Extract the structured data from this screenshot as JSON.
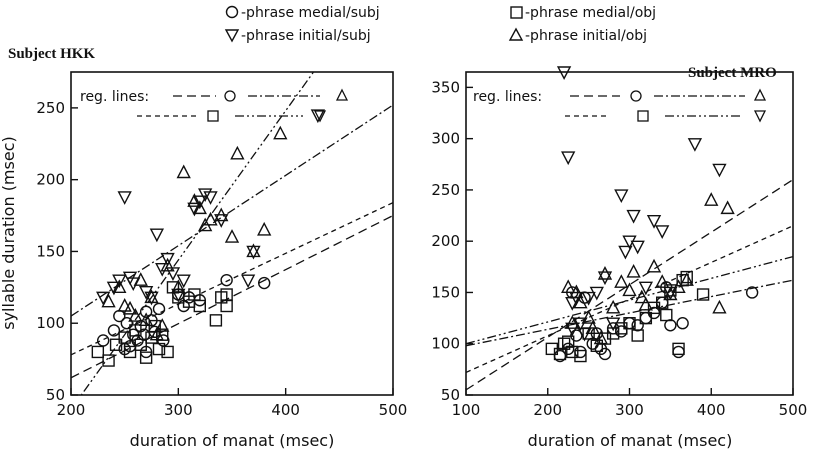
{
  "legend": [
    {
      "marker": "circle",
      "label": "-phrase medial/subj"
    },
    {
      "marker": "triangle-down",
      "label": "-phrase initial/subj"
    },
    {
      "marker": "square",
      "label": "-phrase medial/obj"
    },
    {
      "marker": "triangle-up",
      "label": "-phrase initial/obj"
    }
  ],
  "reg_label": "reg. lines:",
  "reg_styles": [
    {
      "marker": "circle",
      "dash": "long-dash"
    },
    {
      "marker": "triangle-up",
      "dash": "dash-dot"
    },
    {
      "marker": "square",
      "dash": "short-dash"
    },
    {
      "marker": "triangle-down",
      "dash": "dash-dot-dot"
    }
  ],
  "chart_data": [
    {
      "type": "scatter",
      "subtitle": "Subject HKK",
      "xlabel": "duration of manat (msec)",
      "ylabel": "syllable duration (msec)",
      "xlim": [
        200,
        500
      ],
      "ylim": [
        50,
        275
      ],
      "xticks": [
        200,
        300,
        400,
        500
      ],
      "yticks": [
        50,
        100,
        150,
        200,
        250
      ],
      "series": [
        {
          "name": "phrase medial/subj",
          "marker": "circle",
          "points": [
            [
              230,
              88
            ],
            [
              240,
              95
            ],
            [
              245,
              105
            ],
            [
              250,
              82
            ],
            [
              252,
              100
            ],
            [
              258,
              92
            ],
            [
              262,
              88
            ],
            [
              265,
              98
            ],
            [
              270,
              80
            ],
            [
              270,
              108
            ],
            [
              275,
              102
            ],
            [
              278,
              94
            ],
            [
              282,
              110
            ],
            [
              286,
              88
            ],
            [
              300,
              120
            ],
            [
              305,
              112
            ],
            [
              310,
              118
            ],
            [
              320,
              116
            ],
            [
              345,
              130
            ],
            [
              380,
              128
            ],
            [
              255,
              84
            ],
            [
              268,
              92
            ]
          ]
        },
        {
          "name": "phrase initial/subj",
          "marker": "triangle-down",
          "points": [
            [
              230,
              118
            ],
            [
              240,
              125
            ],
            [
              245,
              130
            ],
            [
              250,
              188
            ],
            [
              258,
              128
            ],
            [
              270,
              122
            ],
            [
              275,
              118
            ],
            [
              280,
              162
            ],
            [
              285,
              138
            ],
            [
              290,
              145
            ],
            [
              295,
              135
            ],
            [
              300,
              120
            ],
            [
              305,
              130
            ],
            [
              315,
              180
            ],
            [
              320,
              185
            ],
            [
              325,
              190
            ],
            [
              330,
              188
            ],
            [
              340,
              172
            ],
            [
              365,
              130
            ],
            [
              370,
              150
            ],
            [
              430,
              245
            ],
            [
              255,
              132
            ]
          ]
        },
        {
          "name": "phrase medial/obj",
          "marker": "square",
          "points": [
            [
              225,
              80
            ],
            [
              235,
              74
            ],
            [
              242,
              85
            ],
            [
              250,
              90
            ],
            [
              255,
              80
            ],
            [
              260,
              95
            ],
            [
              265,
              85
            ],
            [
              270,
              76
            ],
            [
              275,
              90
            ],
            [
              278,
              98
            ],
            [
              282,
              82
            ],
            [
              285,
              92
            ],
            [
              290,
              80
            ],
            [
              295,
              125
            ],
            [
              300,
              118
            ],
            [
              310,
              115
            ],
            [
              315,
              120
            ],
            [
              320,
              112
            ],
            [
              335,
              102
            ],
            [
              340,
              118
            ],
            [
              345,
              112
            ],
            [
              345,
              120
            ]
          ]
        },
        {
          "name": "phrase initial/obj",
          "marker": "triangle-up",
          "points": [
            [
              235,
              115
            ],
            [
              245,
              125
            ],
            [
              250,
              112
            ],
            [
              255,
              110
            ],
            [
              260,
              105
            ],
            [
              265,
              130
            ],
            [
              270,
              102
            ],
            [
              275,
              118
            ],
            [
              280,
              92
            ],
            [
              285,
              98
            ],
            [
              290,
              140
            ],
            [
              300,
              125
            ],
            [
              305,
              205
            ],
            [
              315,
              185
            ],
            [
              320,
              180
            ],
            [
              325,
              168
            ],
            [
              330,
              172
            ],
            [
              340,
              175
            ],
            [
              350,
              160
            ],
            [
              355,
              218
            ],
            [
              370,
              150
            ],
            [
              380,
              165
            ],
            [
              395,
              232
            ]
          ]
        }
      ],
      "reg_lines": [
        {
          "marker": "circle",
          "from": [
            200,
            62
          ],
          "to": [
            500,
            175
          ]
        },
        {
          "marker": "triangle-up",
          "from": [
            200,
            105
          ],
          "to": [
            500,
            252
          ]
        },
        {
          "marker": "square",
          "from": [
            200,
            78
          ],
          "to": [
            500,
            184
          ]
        },
        {
          "marker": "triangle-down",
          "from": [
            200,
            40
          ],
          "to": [
            450,
            300
          ]
        }
      ]
    },
    {
      "type": "scatter",
      "subtitle": "Subject MRO",
      "xlabel": "duration of manat (msec)",
      "ylabel": "",
      "xlim": [
        100,
        500
      ],
      "ylim": [
        50,
        365
      ],
      "xticks": [
        100,
        200,
        300,
        400,
        500
      ],
      "yticks": [
        50,
        100,
        150,
        200,
        250,
        300,
        350
      ],
      "series": [
        {
          "name": "phrase medial/subj",
          "marker": "circle",
          "points": [
            [
              215,
              88
            ],
            [
              225,
              95
            ],
            [
              230,
              150
            ],
            [
              240,
              92
            ],
            [
              245,
              145
            ],
            [
              255,
              100
            ],
            [
              260,
              110
            ],
            [
              265,
              95
            ],
            [
              270,
              90
            ],
            [
              280,
              115
            ],
            [
              290,
              112
            ],
            [
              300,
              120
            ],
            [
              310,
              118
            ],
            [
              320,
              125
            ],
            [
              330,
              130
            ],
            [
              340,
              140
            ],
            [
              345,
              155
            ],
            [
              350,
              118
            ],
            [
              360,
              92
            ],
            [
              365,
              120
            ],
            [
              450,
              150
            ],
            [
              235,
              108
            ]
          ]
        },
        {
          "name": "phrase initial/subj",
          "marker": "triangle-down",
          "points": [
            [
              220,
              365
            ],
            [
              225,
              282
            ],
            [
              230,
              140
            ],
            [
              235,
              145
            ],
            [
              240,
              120
            ],
            [
              250,
              145
            ],
            [
              260,
              150
            ],
            [
              270,
              165
            ],
            [
              280,
              120
            ],
            [
              290,
              245
            ],
            [
              295,
              190
            ],
            [
              300,
              200
            ],
            [
              305,
              225
            ],
            [
              310,
              195
            ],
            [
              320,
              155
            ],
            [
              330,
              220
            ],
            [
              340,
              210
            ],
            [
              350,
              150
            ],
            [
              380,
              295
            ],
            [
              410,
              270
            ],
            [
              230,
              115
            ],
            [
              245,
              110
            ]
          ]
        },
        {
          "name": "phrase medial/obj",
          "marker": "square",
          "points": [
            [
              205,
              95
            ],
            [
              215,
              90
            ],
            [
              220,
              100
            ],
            [
              230,
              92
            ],
            [
              240,
              88
            ],
            [
              250,
              110
            ],
            [
              260,
              98
            ],
            [
              270,
              105
            ],
            [
              280,
              110
            ],
            [
              290,
              115
            ],
            [
              300,
              120
            ],
            [
              310,
              108
            ],
            [
              320,
              125
            ],
            [
              330,
              135
            ],
            [
              340,
              140
            ],
            [
              345,
              128
            ],
            [
              350,
              152
            ],
            [
              360,
              95
            ],
            [
              365,
              162
            ],
            [
              370,
              165
            ],
            [
              390,
              148
            ],
            [
              225,
              102
            ]
          ]
        },
        {
          "name": "phrase initial/obj",
          "marker": "triangle-up",
          "points": [
            [
              225,
              155
            ],
            [
              235,
              150
            ],
            [
              240,
              140
            ],
            [
              250,
              125
            ],
            [
              255,
              115
            ],
            [
              265,
              105
            ],
            [
              270,
              168
            ],
            [
              280,
              135
            ],
            [
              290,
              160
            ],
            [
              300,
              152
            ],
            [
              305,
              170
            ],
            [
              315,
              145
            ],
            [
              320,
              138
            ],
            [
              330,
              175
            ],
            [
              340,
              160
            ],
            [
              350,
              148
            ],
            [
              360,
              155
            ],
            [
              370,
              162
            ],
            [
              400,
              240
            ],
            [
              410,
              135
            ],
            [
              420,
              232
            ],
            [
              230,
              120
            ]
          ]
        }
      ],
      "reg_lines": [
        {
          "marker": "circle",
          "from": [
            100,
            55
          ],
          "to": [
            500,
            260
          ]
        },
        {
          "marker": "triangle-up",
          "from": [
            100,
            98
          ],
          "to": [
            500,
            162
          ]
        },
        {
          "marker": "square",
          "from": [
            100,
            72
          ],
          "to": [
            500,
            215
          ]
        },
        {
          "marker": "triangle-down",
          "from": [
            100,
            100
          ],
          "to": [
            500,
            185
          ]
        }
      ]
    }
  ]
}
